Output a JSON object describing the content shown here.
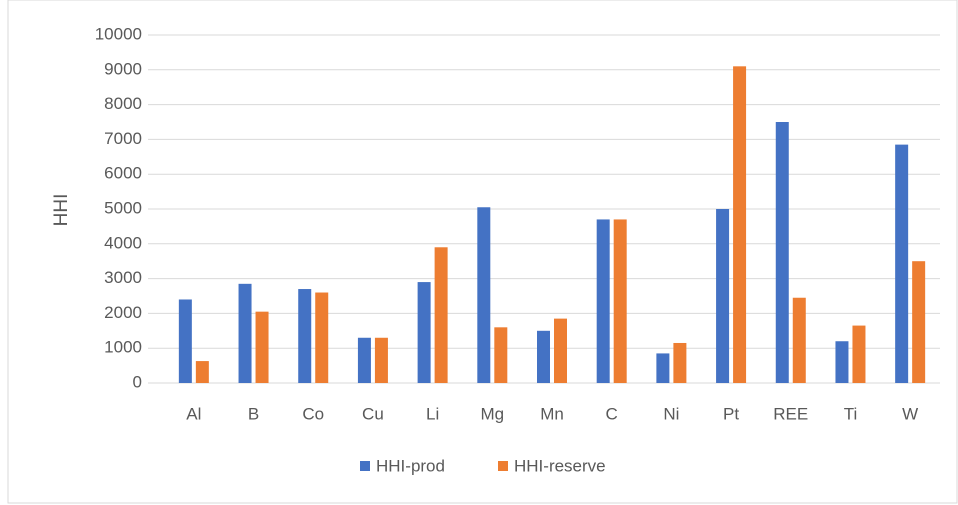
{
  "chart_data": {
    "type": "bar",
    "y_label": "HHI",
    "categories": [
      "Al",
      "B",
      "Co",
      "Cu",
      "Li",
      "Mg",
      "Mn",
      "C",
      "Ni",
      "Pt",
      "REE",
      "Ti",
      "W"
    ],
    "series": [
      {
        "name": "HHI-prod",
        "color": "#4472c4",
        "values": [
          2400,
          2850,
          2700,
          1300,
          2900,
          5050,
          1500,
          4700,
          850,
          5000,
          7500,
          1200,
          6850
        ]
      },
      {
        "name": "HHI-reserve",
        "color": "#ed7d31",
        "values": [
          630,
          2050,
          2600,
          1300,
          3900,
          1600,
          1850,
          4700,
          1150,
          9100,
          2450,
          1650,
          3500
        ]
      }
    ],
    "ylim": [
      0,
      10000
    ],
    "yticks": [
      0,
      1000,
      2000,
      3000,
      4000,
      5000,
      6000,
      7000,
      8000,
      9000,
      10000
    ],
    "grid": true,
    "legend": "bottom"
  }
}
